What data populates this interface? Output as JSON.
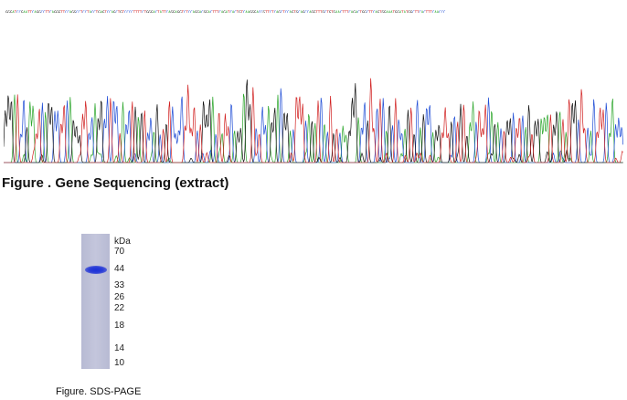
{
  "sequencing": {
    "bases": "GGGATCCGAATTCAGGCCTTCAGGGTTCCAGGCCTCCTACCTGAGTCCAGCTGTCCCCTTTTCTGGGACTATTCAGGAGGTCTCCAGGACGGACTTTCAGATCACTGTCAAGGGACCGTTCTCAGCTCCAGTGCAGCCAGGTTTGCTGTGAACTTTCAGACTGGCTTCAGTGGAAATGGATATGGCTTCACTTTCAACCC",
    "colors": {
      "A": "#2aa52a",
      "C": "#1f4dd6",
      "G": "#111111",
      "T": "#d12020"
    },
    "caption": "Figure . Gene Sequencing (extract)"
  },
  "sds_page": {
    "unit_label": "kDa",
    "markers": [
      "70",
      "44",
      "33",
      "26",
      "22",
      "18",
      "14",
      "10"
    ],
    "band_colors": {
      "lane": "#c0c3da",
      "band": "#1c30d6"
    },
    "caption": "Figure. SDS-PAGE"
  }
}
